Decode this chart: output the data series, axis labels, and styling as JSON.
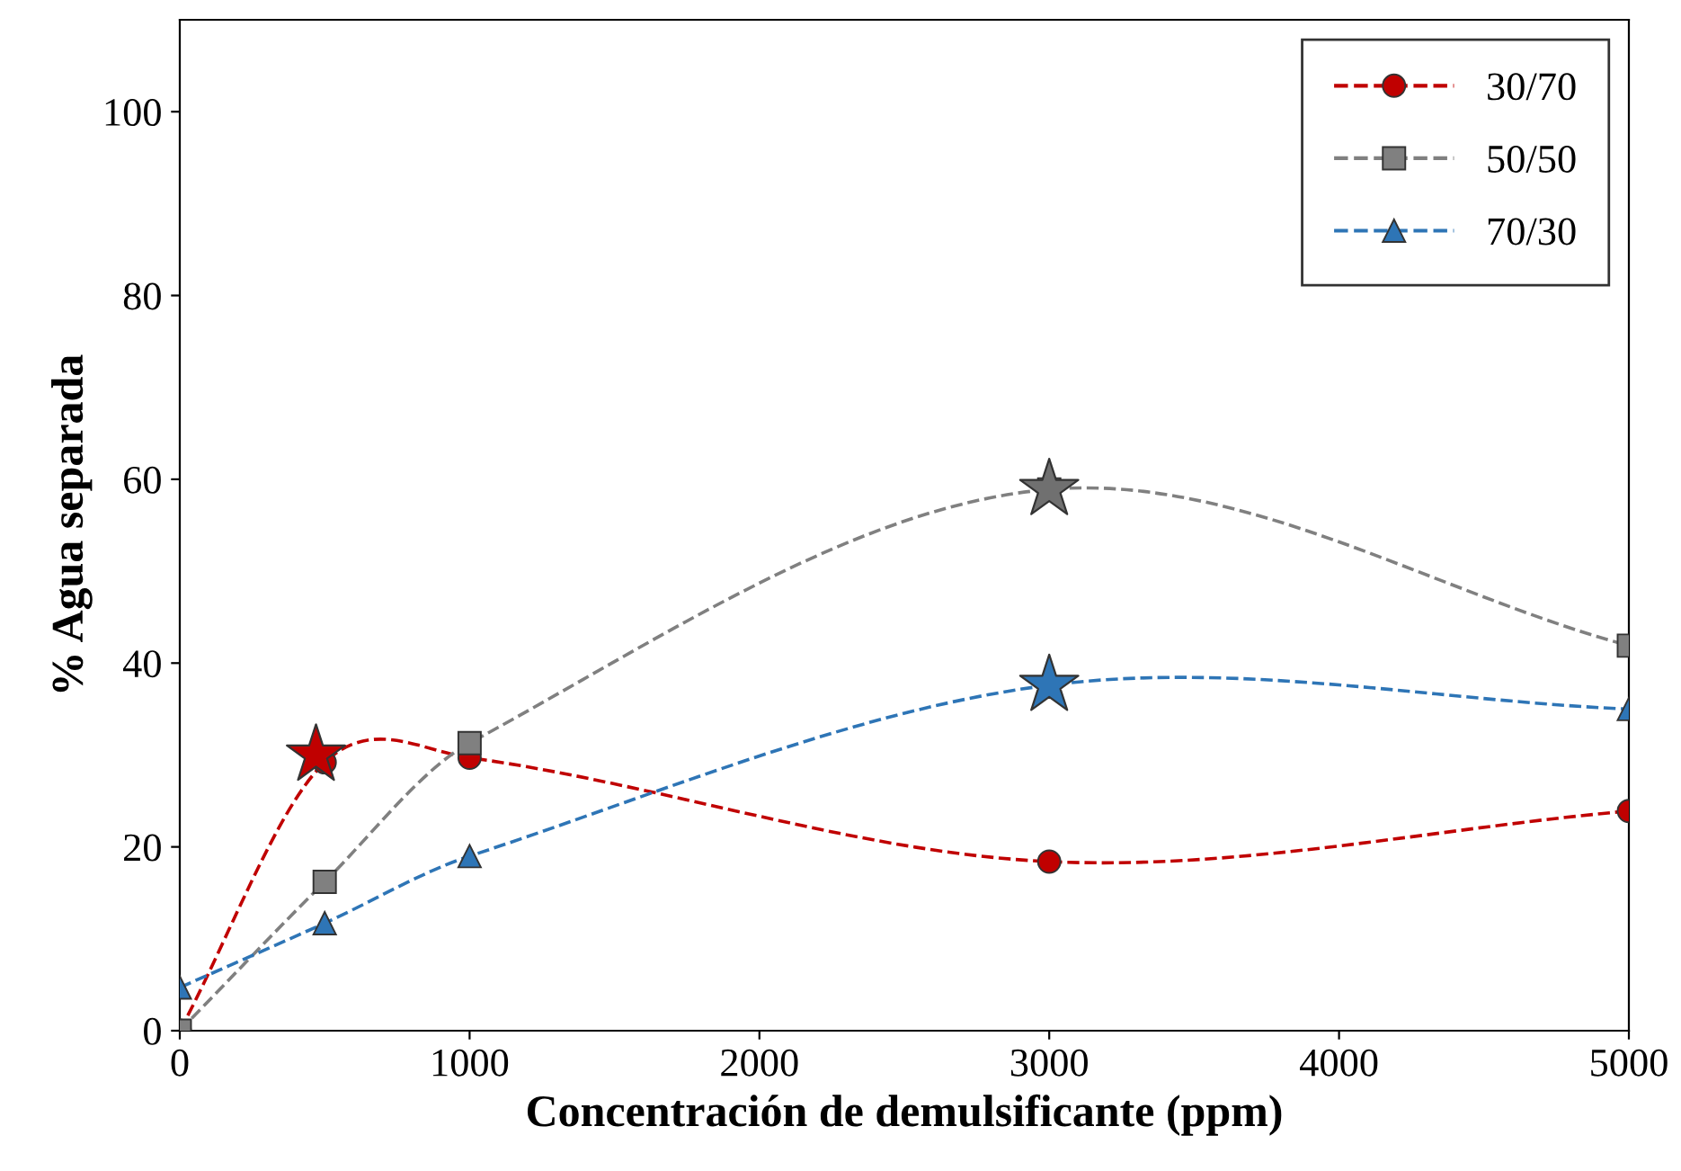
{
  "chart_data": {
    "type": "line",
    "xlabel": "Concentración de demulsificante (ppm)",
    "ylabel": "% Agua separada",
    "xlim": [
      0,
      5000
    ],
    "xticks": [
      0,
      1000,
      2000,
      3000,
      4000,
      5000
    ],
    "ylim": [
      0,
      110
    ],
    "yticks": [
      0,
      20,
      40,
      60,
      80,
      100
    ],
    "grid": false,
    "legend": "top right",
    "line_style": "dashed",
    "series": [
      {
        "name": "30/70",
        "color": "#c00000",
        "marker": "circle",
        "x": [
          0,
          500,
          1000,
          3000,
          5000
        ],
        "values": [
          0,
          29.2,
          29.7,
          18.4,
          23.9
        ]
      },
      {
        "name": "50/50",
        "color": "#808080",
        "marker": "square",
        "x": [
          0,
          500,
          1000,
          3000,
          5000
        ],
        "values": [
          0,
          16.2,
          31.3,
          58.9,
          41.9
        ]
      },
      {
        "name": "70/30",
        "color": "#2e75b6",
        "marker": "triangle",
        "x": [
          0,
          500,
          1000,
          3000,
          5000
        ],
        "values": [
          4.7,
          11.7,
          19.0,
          37.6,
          35.0
        ]
      },
      {
        "type": "scatter",
        "color": "#c00000",
        "marker": "star",
        "x": [
          470
        ],
        "values": [
          30
        ]
      },
      {
        "type": "scatter",
        "color": "#707070",
        "marker": "star",
        "x": [
          3000
        ],
        "values": [
          58.9
        ]
      },
      {
        "type": "scatter",
        "color": "#2e75b6",
        "marker": "star",
        "x": [
          3000
        ],
        "values": [
          37.6
        ]
      }
    ]
  }
}
